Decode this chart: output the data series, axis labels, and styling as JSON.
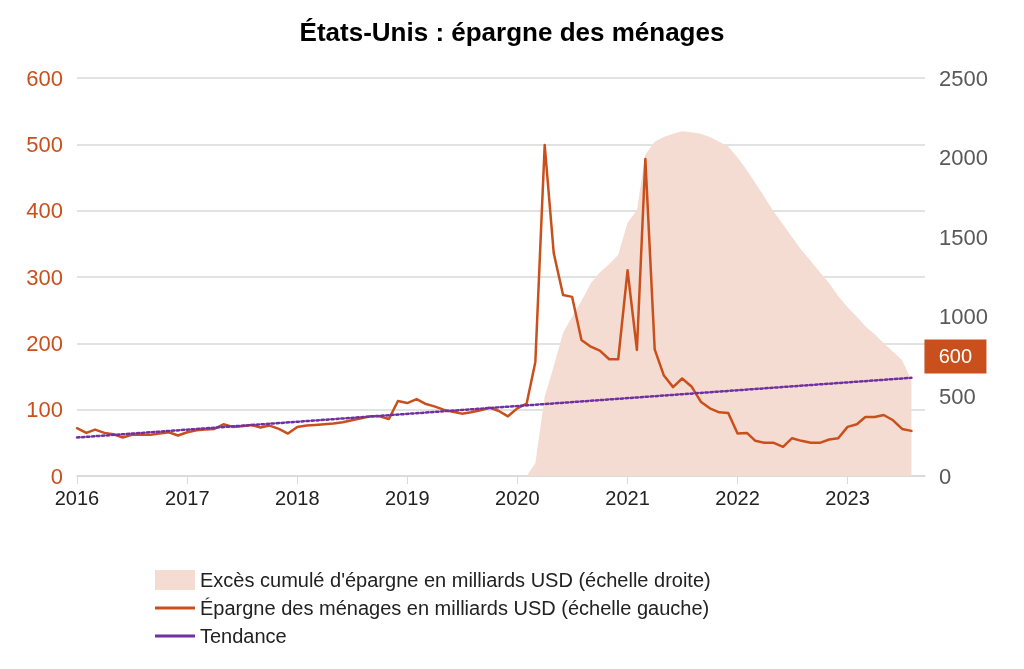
{
  "chart_data": {
    "type": "line",
    "title": "États-Unis : épargne des ménages",
    "xlim": [
      "2016-01",
      "2023-09-15"
    ],
    "xticks": [
      "2016",
      "2017",
      "2018",
      "2019",
      "2020",
      "2021",
      "2022",
      "2023"
    ],
    "ylim": [
      0,
      600
    ],
    "yticks": [
      0,
      100,
      200,
      300,
      400,
      500,
      600
    ],
    "y2lim": [
      0,
      2500
    ],
    "y2ticks": [
      0,
      500,
      1000,
      1500,
      2000,
      2500
    ],
    "grid": "y",
    "legend": "bottom",
    "marker": "none",
    "series": [
      {
        "name": "Excès cumulé d'épargne en milliards USD (échelle droite)",
        "type": "area",
        "axis": "y2",
        "color": "#f4dcd2",
        "x": [
          "2020-02",
          "2020-03",
          "2020-04",
          "2020-05",
          "2020-06",
          "2020-07",
          "2020-08",
          "2020-09",
          "2020-10",
          "2020-11",
          "2020-12",
          "2021-01",
          "2021-02",
          "2021-03",
          "2021-04",
          "2021-05",
          "2021-06",
          "2021-07",
          "2021-08",
          "2021-09",
          "2021-10",
          "2021-11",
          "2021-12",
          "2022-01",
          "2022-02",
          "2022-03",
          "2022-04",
          "2022-05",
          "2022-06",
          "2022-07",
          "2022-08",
          "2022-09",
          "2022-10",
          "2022-11",
          "2022-12",
          "2023-01",
          "2023-02",
          "2023-03",
          "2023-04",
          "2023-05",
          "2023-06",
          "2023-07",
          "2023-08"
        ],
        "values": [
          0,
          80,
          500,
          690,
          900,
          1000,
          1100,
          1210,
          1280,
          1330,
          1390,
          1590,
          1670,
          2020,
          2100,
          2130,
          2150,
          2165,
          2160,
          2150,
          2130,
          2100,
          2070,
          2000,
          1920,
          1840,
          1750,
          1660,
          1580,
          1500,
          1420,
          1350,
          1280,
          1210,
          1130,
          1060,
          1000,
          940,
          890,
          834,
          780,
          729,
          600
        ]
      },
      {
        "name": "Épargne des ménages en milliards USD (échelle gauche)",
        "color": "#c9501c",
        "line_style": "solid",
        "x": [
          "2016-01",
          "2016-02",
          "2016-03",
          "2016-04",
          "2016-05",
          "2016-06",
          "2016-07",
          "2016-08",
          "2016-09",
          "2016-10",
          "2016-11",
          "2016-12",
          "2017-01",
          "2017-02",
          "2017-03",
          "2017-04",
          "2017-05",
          "2017-06",
          "2017-07",
          "2017-08",
          "2017-09",
          "2017-10",
          "2017-11",
          "2017-12",
          "2018-01",
          "2018-02",
          "2018-03",
          "2018-04",
          "2018-05",
          "2018-06",
          "2018-07",
          "2018-08",
          "2018-09",
          "2018-10",
          "2018-11",
          "2018-12",
          "2019-01",
          "2019-02",
          "2019-03",
          "2019-04",
          "2019-05",
          "2019-06",
          "2019-07",
          "2019-08",
          "2019-09",
          "2019-10",
          "2019-11",
          "2019-12",
          "2020-01",
          "2020-02",
          "2020-03",
          "2020-04",
          "2020-05",
          "2020-06",
          "2020-07",
          "2020-08",
          "2020-09",
          "2020-10",
          "2020-11",
          "2020-12",
          "2021-01",
          "2021-02",
          "2021-03",
          "2021-04",
          "2021-05",
          "2021-06",
          "2021-07",
          "2021-08",
          "2021-09",
          "2021-10",
          "2021-11",
          "2021-12",
          "2022-01",
          "2022-02",
          "2022-03",
          "2022-04",
          "2022-05",
          "2022-06",
          "2022-07",
          "2022-08",
          "2022-09",
          "2022-10",
          "2022-11",
          "2022-12",
          "2023-01",
          "2023-02",
          "2023-03",
          "2023-04",
          "2023-05",
          "2023-06",
          "2023-07",
          "2023-08"
        ],
        "values": [
          72,
          65,
          70,
          65,
          63,
          58,
          62,
          62,
          62,
          64,
          66,
          61,
          66,
          69,
          70,
          71,
          78,
          74,
          75,
          77,
          73,
          76,
          71,
          64,
          74,
          76,
          77,
          78,
          79,
          81,
          84,
          87,
          90,
          90,
          86,
          113,
          110,
          116,
          109,
          105,
          100,
          97,
          94,
          96,
          99,
          103,
          98,
          90,
          102,
          109,
          172,
          499,
          336,
          273,
          270,
          205,
          195,
          189,
          176,
          176,
          310,
          190,
          478,
          191,
          152,
          134,
          147,
          135,
          112,
          102,
          96,
          95,
          64,
          65,
          53,
          50,
          50,
          44,
          57,
          53,
          50,
          50,
          55,
          57,
          74,
          78,
          89,
          89,
          92,
          84,
          71,
          68
        ]
      },
      {
        "name": "Tendance",
        "color": "#7030a0",
        "line_style": "dotted",
        "x": [
          "2016-01",
          "2023-08"
        ],
        "values": [
          58,
          148
        ]
      }
    ],
    "annotations": [
      "600"
    ]
  }
}
